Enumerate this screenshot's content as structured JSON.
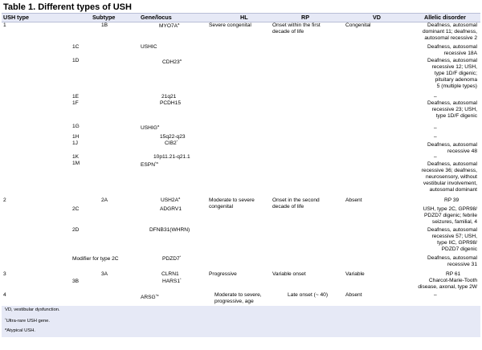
{
  "title": "Table 1. Different types of USH",
  "headers": {
    "ush_type": "USH type",
    "subtype": "Subtype",
    "gene": "Gene/locus",
    "hl": "HL",
    "rp": "RP",
    "vd": "VD",
    "allelic": "Allelic disorder"
  },
  "rows": {
    "r1": {
      "type": "1",
      "subtype": "1B",
      "gene": "MYO7A",
      "gene_sup": "a",
      "hl": "Severe congenital",
      "rp1": "Onset within the first",
      "rp2": "decade of life",
      "vd": "Congenital",
      "al1": "Deafness, autosomal",
      "al2": "dominant 11; deafness,",
      "al3": "autosomal recessive 2"
    },
    "r1c": {
      "subtype": "1C",
      "gene": "USHIC",
      "al1": "Deafness, autosomal",
      "al2": "recessive 18A"
    },
    "r1d": {
      "subtype": "1D",
      "gene": "CDH23",
      "gene_sup": "a",
      "al1": "Deafness, autosomal",
      "al2": "recessive 12; USH,",
      "al3": "type 1D/F digenic;",
      "al4": "pituitary adenoma",
      "al5": "5 (multiple types)"
    },
    "r1e": {
      "subtype": "1E",
      "gene": "21q21",
      "al1": "–"
    },
    "r1f": {
      "subtype": "1F",
      "gene": "PCDH15",
      "al1": "Deafness, autosomal",
      "al2": "recessive 23; USH,",
      "al3": "type 1D/F digenic"
    },
    "r1g": {
      "subtype": "1G",
      "gene": "USHIG",
      "gene_sup": "a",
      "al1": "–"
    },
    "r1h": {
      "subtype": "1H",
      "gene": "15q22-q23",
      "al1": "–"
    },
    "r1j": {
      "subtype": "1J",
      "gene": "CIB2",
      "gene_sup": "*",
      "al1": "Deafness, autosomal",
      "al2": "recessive 48"
    },
    "r1k": {
      "subtype": "1K",
      "gene": "10p11.21-q21.1",
      "al1": "–"
    },
    "r1m": {
      "subtype": "1M",
      "gene": "ESPN",
      "gene_sup": "*a",
      "al1": "Deafness, autosomal",
      "al2": "recessive 36; deafness,",
      "al3": "neurosensory, without",
      "al4": "vestibular involvement,",
      "al5": "autosomal dominant"
    },
    "r2": {
      "type": "2",
      "subtype": "2A",
      "gene": "USH2A",
      "gene_sup": "a",
      "hl1": "Moderate to severe",
      "hl2": "congenital",
      "rp1": "Onset in the second",
      "rp2": "decade of life",
      "vd": "Absent",
      "al1": "RP 39"
    },
    "r2c": {
      "subtype": "2C",
      "gene": "ADGRV1",
      "al1": "USH, type 2C, GPR98/",
      "al2": "PDZD7 digenic; febrile",
      "al3": "seizures, familial, 4"
    },
    "r2d": {
      "subtype": "2D",
      "gene": "DFNB31(WHRN)",
      "al1": "Deafness, autosomal",
      "al2": "recessive 57; USH,",
      "al3": "type IIC, GPR98/",
      "al4": "PDZD7 digenic"
    },
    "r2m": {
      "subtype": "Modifier for type 2C",
      "gene": "PDZD7",
      "gene_sup": "*",
      "al1": "Deafness, autosomal",
      "al2": "recessive 31"
    },
    "r3": {
      "type": "3",
      "subtype": "3A",
      "gene": "CLRN1",
      "hl": "Progressive",
      "rp": "Variable onset",
      "vd": "Variable",
      "al1": "RP 61"
    },
    "r3b": {
      "subtype": "3B",
      "gene": "HARS1",
      "gene_sup": "*",
      "al1": "Charcot-Marie-Tooth",
      "al2": "disease, axonal, type 2W"
    },
    "r4": {
      "type": "4",
      "gene": "ARSG",
      "gene_sup": "*a",
      "hl1": "Moderate to severe,",
      "hl2": "progressive, age",
      "rp": "Late onset (~ 40)",
      "vd": "Absent",
      "al1": "–"
    }
  },
  "footnotes": {
    "f1": "VD, vestibular dysfunction.",
    "f2_sup": "*",
    "f2": "Ultra-rare USH gene.",
    "f3_sup": "a",
    "f3": "Atypical USH."
  }
}
